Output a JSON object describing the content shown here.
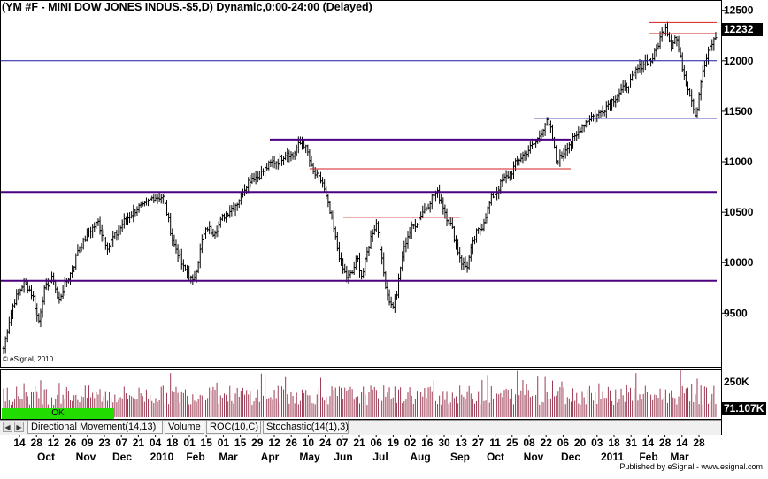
{
  "header": {
    "title": "(YM #F - MINI DOW JONES INDUS.-$5,D) Dynamic,0:00-24:00 (Delayed)",
    "credit": "© eSignal, 2010",
    "published": "Published by eSignal - www.esignal.com"
  },
  "status": {
    "ok_label": "OK"
  },
  "tabs": [
    "Directional Movement(14,13)",
    "Volume",
    "ROC(10,C)",
    "Stochastic(14(1),3)"
  ],
  "nav": {
    "prev_icon": "arrow-left-icon",
    "next_icon": "arrow-right-icon"
  },
  "colors": {
    "bars": "#000000",
    "volume": "#9b3a52",
    "purple_line": "#4b0082",
    "red_line": "#d22020",
    "blue_line": "#1a1aa6",
    "ok_bg": "#22dd00"
  },
  "chart_data": [
    {
      "type": "ohlc",
      "title": "(YM #F - MINI DOW JONES INDUS.-$5,D) Dynamic,0:00-24:00 (Delayed)",
      "ylim": [
        9100,
        12550
      ],
      "y_ticks": [
        9500,
        10000,
        10500,
        11000,
        11500,
        12000,
        12500
      ],
      "last_value": "12232",
      "x_day_labels": [
        "14",
        "28",
        "12",
        "26",
        "09",
        "23",
        "07",
        "21",
        "04",
        "18",
        "01",
        "15",
        "01",
        "15",
        "29",
        "12",
        "26",
        "10",
        "24",
        "07",
        "21",
        "06",
        "19",
        "02",
        "16",
        "30",
        "13",
        "27",
        "11",
        "25",
        "08",
        "22",
        "06",
        "20",
        "03",
        "18",
        "31",
        "14",
        "28",
        "14",
        "28"
      ],
      "x_month_labels": [
        "Oct",
        "Nov",
        "Dec",
        "2010",
        "Feb",
        "Mar",
        "Apr",
        "May",
        "Jun",
        "Jul",
        "Aug",
        "Sep",
        "Oct",
        "Nov",
        "Dec",
        "2011",
        "Feb",
        "Mar"
      ],
      "series": [
        {
          "close_path": [
            9150,
            9400,
            9600,
            9700,
            9800,
            9750,
            9650,
            9400,
            9700,
            9800,
            9850,
            9600,
            9750,
            9850,
            9950,
            10150,
            10200,
            10300,
            10350,
            10400,
            10250,
            10150,
            10250,
            10300,
            10400,
            10450,
            10500,
            10550,
            10550,
            10600,
            10650,
            10650,
            10650,
            10450,
            10200,
            10100,
            9950,
            9900,
            9800,
            10000,
            10250,
            10350,
            10300,
            10350,
            10450,
            10500,
            10550,
            10600,
            10700,
            10800,
            10850,
            10850,
            10900,
            10950,
            11000,
            11000,
            11050,
            11100,
            11050,
            11150,
            11200,
            11100,
            10900,
            10850,
            10800,
            10600,
            10400,
            10150,
            9950,
            9850,
            9900,
            10050,
            9850,
            10100,
            10300,
            10400,
            10000,
            9700,
            9550,
            9700,
            10050,
            10250,
            10350,
            10400,
            10500,
            10550,
            10650,
            10700,
            10600,
            10450,
            10350,
            10150,
            10000,
            9950,
            10150,
            10300,
            10350,
            10500,
            10650,
            10700,
            10800,
            10850,
            10900,
            11000,
            11050,
            11100,
            11150,
            11200,
            11300,
            11400,
            11300,
            11000,
            11050,
            11150,
            11200,
            11250,
            11350,
            11400,
            11450,
            11450,
            11500,
            11550,
            11600,
            11650,
            11700,
            11750,
            11800,
            11900,
            11950,
            12000,
            12000,
            12100,
            12250,
            12350,
            12150,
            12250,
            12000,
            11800,
            11650,
            11450,
            11800,
            12000,
            12150,
            12232
          ]
        },
        {
          "name": "Volume",
          "type": "bar",
          "y_ticks": [
            "250K"
          ],
          "last_value": "71.107K"
        }
      ],
      "levels": [
        {
          "color": "purple",
          "price": 11220,
          "from": "Apr",
          "to": "Dec"
        },
        {
          "color": "purple",
          "price": 10700,
          "from": "Oct",
          "to": "Mar"
        },
        {
          "color": "purple",
          "price": 9820,
          "from": "Oct",
          "to": "Mar"
        },
        {
          "color": "red",
          "price": 10930,
          "from": "May",
          "to": "Dec"
        },
        {
          "color": "red",
          "price": 10450,
          "from": "Jun",
          "to": "Sep"
        },
        {
          "color": "red",
          "price": 12380,
          "from": "Feb",
          "to": "Mar"
        },
        {
          "color": "red",
          "price": 12270,
          "from": "Feb",
          "to": "Mar"
        },
        {
          "color": "blue",
          "price": 11430,
          "from": "Nov",
          "to": "Mar"
        },
        {
          "color": "blue",
          "price": 12000,
          "from": "Jan",
          "to": "Mar"
        }
      ]
    }
  ]
}
